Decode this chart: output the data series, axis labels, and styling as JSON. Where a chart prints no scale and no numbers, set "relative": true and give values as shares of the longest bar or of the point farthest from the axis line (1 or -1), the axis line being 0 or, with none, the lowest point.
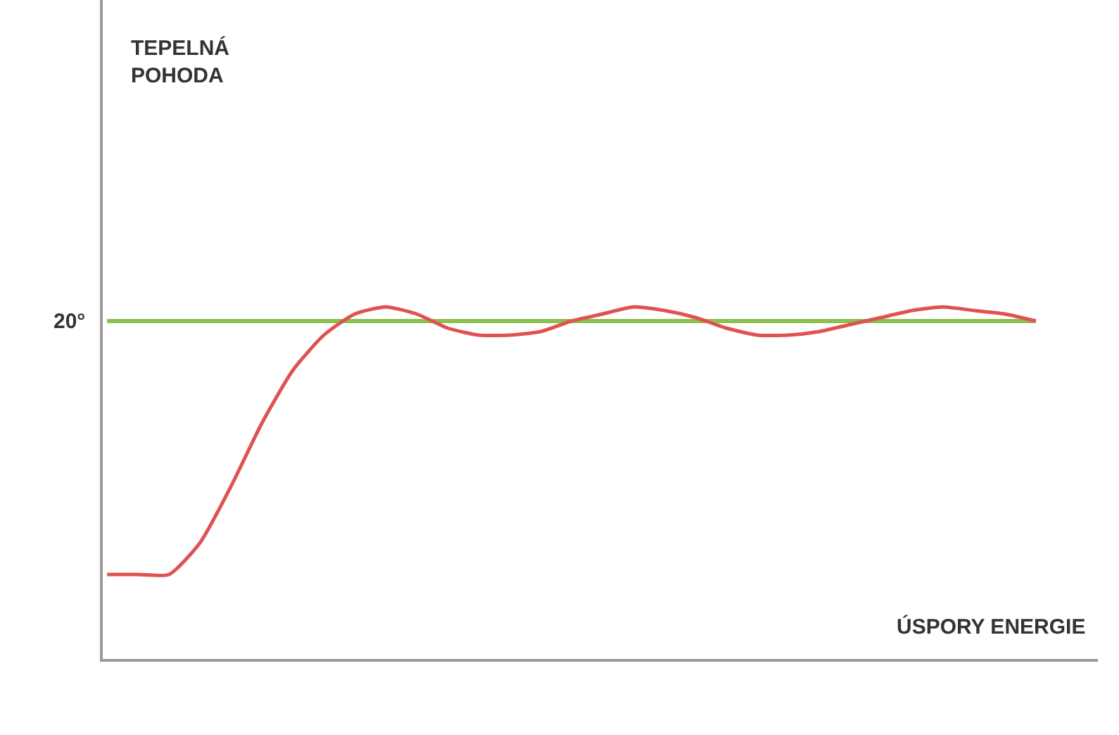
{
  "chart_data": {
    "type": "line",
    "relative": true,
    "xlabel": "ÚSPORY ENERGIE",
    "annotations": [
      "TEPELNÁ\nPOHODA",
      "20°"
    ],
    "categories": [
      null,
      null,
      null,
      null,
      null,
      null,
      null,
      null,
      null,
      null,
      null,
      null,
      null,
      null,
      null,
      null,
      null,
      null,
      null,
      null,
      null,
      null,
      null,
      null,
      null,
      null,
      null,
      null,
      null,
      null,
      null
    ],
    "series": [
      {
        "color": "#e05252",
        "values": [
          0.24,
          0.24,
          0.24,
          0.33,
          0.49,
          0.67,
          0.82,
          0.92,
          0.98,
          1.0,
          0.98,
          0.94,
          0.92,
          0.92,
          0.93,
          0.96,
          0.98,
          1.0,
          0.99,
          0.97,
          0.94,
          0.92,
          0.92,
          0.93,
          0.95,
          0.97,
          0.99,
          1.0,
          0.99,
          0.98,
          0.96
        ]
      }
    ],
    "ref_lines": [
      {
        "axis": "y",
        "value": 0.96,
        "color": "#8cc152"
      }
    ],
    "legend": false,
    "marker": "none",
    "line_style": "solid"
  }
}
